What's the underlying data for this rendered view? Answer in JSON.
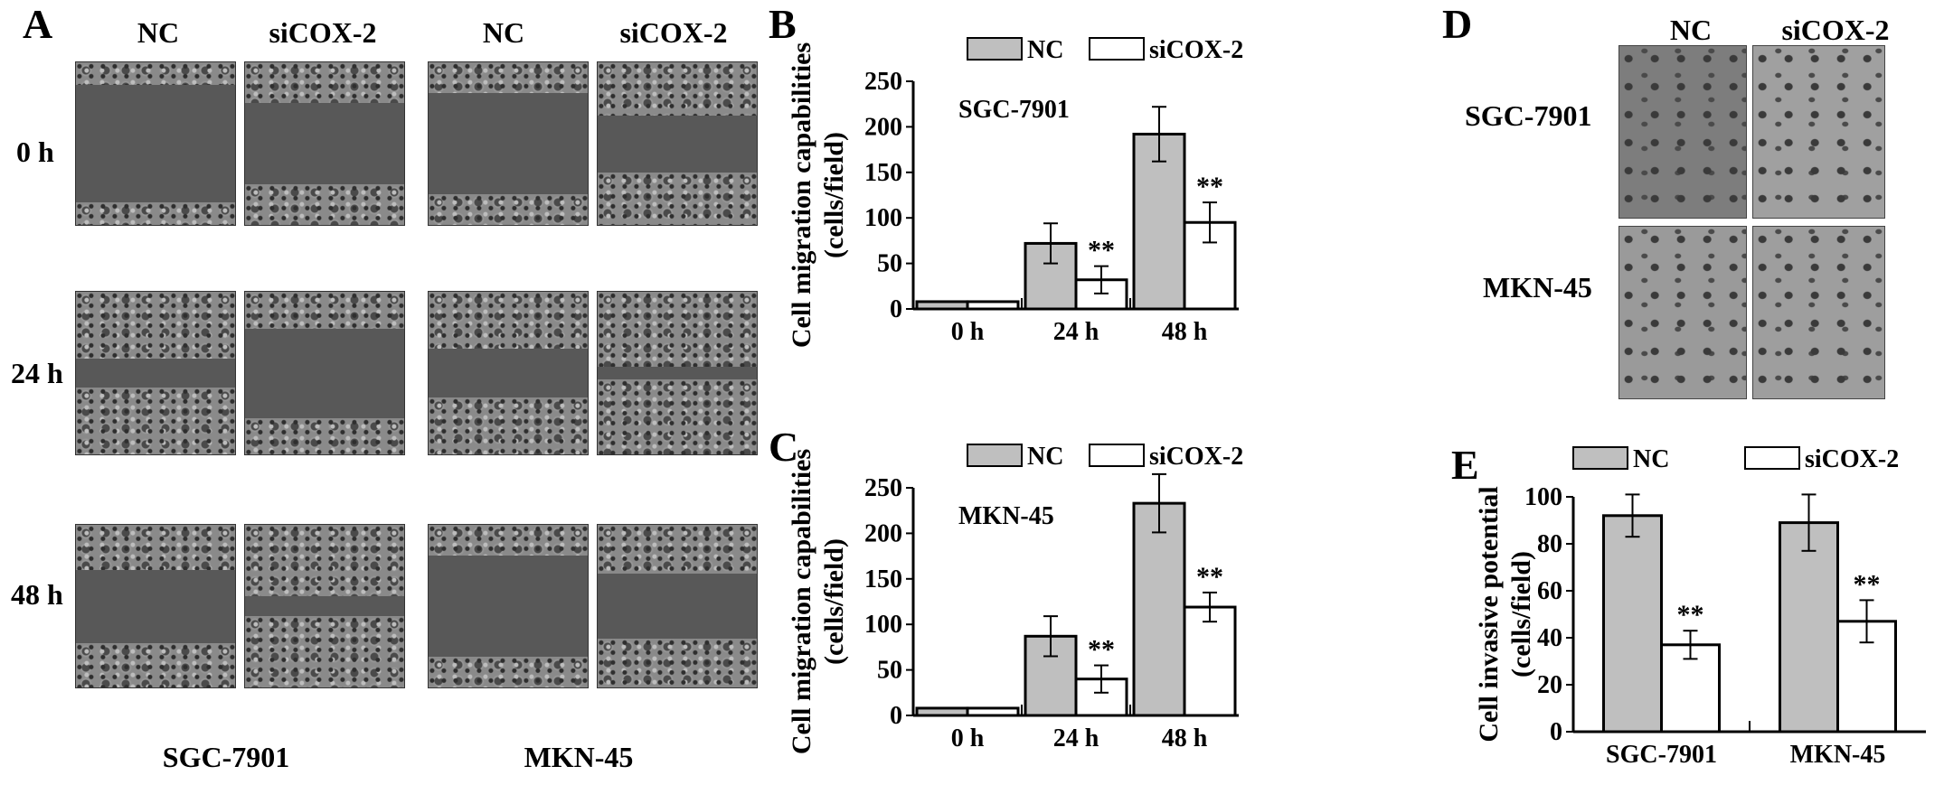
{
  "panel_labels": {
    "a": "A",
    "b": "B",
    "c": "C",
    "d": "D",
    "e": "E"
  },
  "scratch": {
    "col_headers": [
      "NC",
      "siCOX-2",
      "NC",
      "siCOX-2"
    ],
    "row_labels": [
      "0 h",
      "24 h",
      "48 h"
    ],
    "cell_lines": [
      "SGC-7901",
      "MKN-45"
    ],
    "gap_fraction": [
      0.72,
      0.5,
      0.62,
      0.35,
      0.18,
      0.55,
      0.3,
      0.08,
      0.45,
      0.12,
      0.62,
      0.4
    ]
  },
  "transwell": {
    "col_headers": [
      "NC",
      "siCOX-2"
    ],
    "row_labels": [
      "SGC-7901",
      "MKN-45"
    ]
  },
  "colors": {
    "nc_bar": "#bfbfbf",
    "si_bar": "#ffffff",
    "stroke": "#000000"
  },
  "chart_data": [
    {
      "id": "B",
      "type": "bar",
      "annotation": "SGC-7901",
      "categories": [
        "0 h",
        "24 h",
        "48 h"
      ],
      "series": [
        {
          "name": "NC",
          "values": [
            8,
            72,
            192
          ],
          "errors": [
            0,
            22,
            30
          ]
        },
        {
          "name": "siCOX-2",
          "values": [
            8,
            32,
            95
          ],
          "errors": [
            0,
            15,
            22
          ]
        }
      ],
      "significance": [
        "",
        "**",
        "**"
      ],
      "ylabel": [
        "Cell migration capabilities",
        "(cells/field)"
      ],
      "ylim": [
        0,
        250
      ],
      "yticks": [
        0,
        50,
        100,
        150,
        200,
        250
      ],
      "legend": "top"
    },
    {
      "id": "C",
      "type": "bar",
      "annotation": "MKN-45",
      "categories": [
        "0 h",
        "24 h",
        "48 h"
      ],
      "series": [
        {
          "name": "NC",
          "values": [
            8,
            87,
            233
          ],
          "errors": [
            0,
            22,
            32
          ]
        },
        {
          "name": "siCOX-2",
          "values": [
            8,
            40,
            119
          ],
          "errors": [
            0,
            15,
            16
          ]
        }
      ],
      "significance": [
        "",
        "**",
        "**"
      ],
      "ylabel": [
        "Cell migration capabilities",
        "(cells/field)"
      ],
      "ylim": [
        0,
        250
      ],
      "yticks": [
        0,
        50,
        100,
        150,
        200,
        250
      ],
      "legend": "top"
    },
    {
      "id": "E",
      "type": "bar",
      "annotation": "",
      "categories": [
        "SGC-7901",
        "MKN-45"
      ],
      "series": [
        {
          "name": "NC",
          "values": [
            92,
            89
          ],
          "errors": [
            9,
            12
          ]
        },
        {
          "name": "siCOX-2",
          "values": [
            37,
            47
          ],
          "errors": [
            6,
            9
          ]
        }
      ],
      "significance": [
        "**",
        "**"
      ],
      "ylabel": [
        "Cell invasive potential",
        "(cells/field)"
      ],
      "ylim": [
        0,
        100
      ],
      "yticks": [
        0,
        20,
        40,
        60,
        80,
        100
      ],
      "legend": "top"
    }
  ]
}
